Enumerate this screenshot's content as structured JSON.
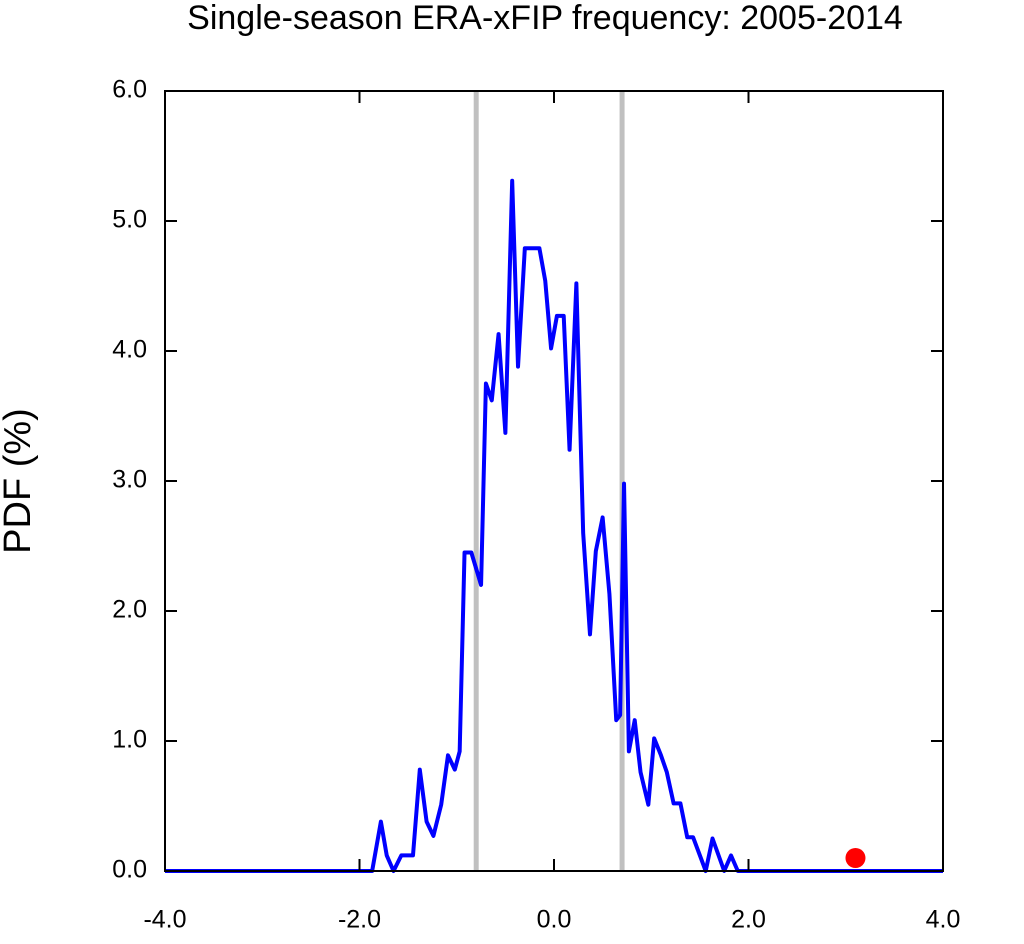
{
  "chart_data": {
    "type": "line",
    "title": "Single-season ERA-xFIP frequency: 2005-2014",
    "y_label": "PDF (%)",
    "x": [
      -4.0,
      -1.87,
      -1.78,
      -1.72,
      -1.65,
      -1.57,
      -1.45,
      -1.38,
      -1.31,
      -1.24,
      -1.16,
      -1.09,
      -1.02,
      -0.97,
      -0.92,
      -0.85,
      -0.75,
      -0.7,
      -0.64,
      -0.57,
      -0.5,
      -0.43,
      -0.37,
      -0.3,
      -0.15,
      -0.09,
      -0.03,
      0.03,
      0.1,
      0.16,
      0.23,
      0.3,
      0.37,
      0.43,
      0.5,
      0.57,
      0.64,
      0.68,
      0.72,
      0.77,
      0.83,
      0.89,
      0.97,
      1.03,
      1.1,
      1.16,
      1.23,
      1.3,
      1.37,
      1.43,
      1.56,
      1.63,
      1.75,
      1.82,
      1.89,
      4.0
    ],
    "series": [
      {
        "color": "#0000ff",
        "values": [
          0,
          0,
          0.38,
          0.12,
          0,
          0.12,
          0.12,
          0.78,
          0.38,
          0.27,
          0.51,
          0.89,
          0.78,
          0.92,
          2.45,
          2.45,
          2.2,
          3.75,
          3.62,
          4.13,
          3.37,
          5.31,
          3.88,
          4.79,
          4.79,
          4.54,
          4.02,
          4.27,
          4.27,
          3.24,
          4.52,
          2.6,
          1.82,
          2.46,
          2.72,
          2.13,
          1.16,
          1.2,
          2.98,
          0.92,
          1.16,
          0.76,
          0.51,
          1.02,
          0.89,
          0.76,
          0.52,
          0.52,
          0.26,
          0.26,
          0,
          0.25,
          0,
          0.12,
          0,
          0
        ]
      }
    ],
    "vlines": {
      "color": "#c0c0c0",
      "x": [
        -0.8,
        0.7
      ]
    },
    "marker": {
      "color": "#ff0000",
      "x": 3.1,
      "y": 0.1
    },
    "xlim": [
      -4,
      4
    ],
    "xticks": [
      {
        "value": -4,
        "label": "-4.0"
      },
      {
        "value": -2,
        "label": "-2.0"
      },
      {
        "value": 0,
        "label": "0.0"
      },
      {
        "value": 2,
        "label": "2.0"
      },
      {
        "value": 4,
        "label": "4.0"
      }
    ],
    "ylim": [
      0,
      6
    ],
    "yticks": [
      {
        "value": 0,
        "label": "0.0"
      },
      {
        "value": 1,
        "label": "1.0"
      },
      {
        "value": 2,
        "label": "2.0"
      },
      {
        "value": 3,
        "label": "3.0"
      },
      {
        "value": 4,
        "label": "4.0"
      },
      {
        "value": 5,
        "label": "5.0"
      },
      {
        "value": 6,
        "label": "6.0"
      }
    ]
  }
}
